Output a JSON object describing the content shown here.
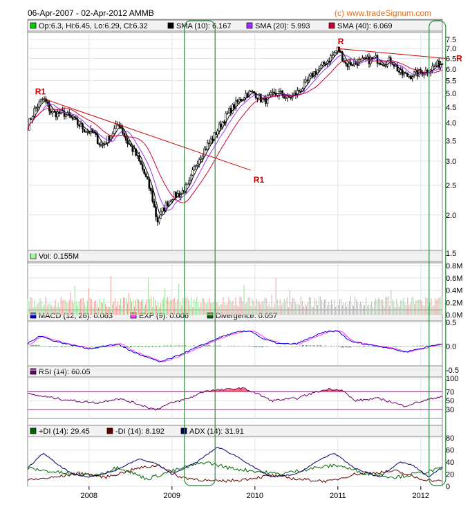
{
  "header": {
    "title": "06-Apr-2007 - 02-Apr-2012 AMMB",
    "source": "(c) www.tradeSignum.com"
  },
  "chart_data": [
    {
      "type": "candlestick",
      "name": "price",
      "scale": "log",
      "ylim": [
        1.5,
        7.5
      ],
      "yticks": [
        "7.5",
        "7.0",
        "6.5",
        "6.0",
        "5.5",
        "5.0",
        "4.5",
        "4.0",
        "3.5",
        "3.0",
        "2.5",
        "2.0",
        "1.5"
      ],
      "legend": [
        {
          "text": "Op:6.3, Hi:6.45, Lo:6.29, Cl:6.32",
          "color": "#00cc00"
        },
        {
          "text": "SMA (10): 6.167",
          "color": "#000000"
        },
        {
          "text": "SMA (20): 5.993",
          "color": "#9933ff"
        },
        {
          "text": "SMA (40): 6.069",
          "color": "#cc0033"
        }
      ],
      "anchors": [
        {
          "t": 2007.26,
          "v": 3.9
        },
        {
          "t": 2007.34,
          "v": 4.4
        },
        {
          "t": 2007.45,
          "v": 4.8
        },
        {
          "t": 2007.55,
          "v": 4.3
        },
        {
          "t": 2007.7,
          "v": 4.3
        },
        {
          "t": 2007.85,
          "v": 4.0
        },
        {
          "t": 2007.95,
          "v": 3.8
        },
        {
          "t": 2008.05,
          "v": 3.7
        },
        {
          "t": 2008.15,
          "v": 3.35
        },
        {
          "t": 2008.25,
          "v": 3.6
        },
        {
          "t": 2008.36,
          "v": 4.0
        },
        {
          "t": 2008.45,
          "v": 3.5
        },
        {
          "t": 2008.55,
          "v": 3.2
        },
        {
          "t": 2008.65,
          "v": 2.8
        },
        {
          "t": 2008.75,
          "v": 2.35
        },
        {
          "t": 2008.82,
          "v": 1.9
        },
        {
          "t": 2008.9,
          "v": 2.1
        },
        {
          "t": 2009.0,
          "v": 2.3
        },
        {
          "t": 2009.1,
          "v": 2.35
        },
        {
          "t": 2009.2,
          "v": 2.5
        },
        {
          "t": 2009.3,
          "v": 3.0
        },
        {
          "t": 2009.4,
          "v": 3.3
        },
        {
          "t": 2009.5,
          "v": 3.6
        },
        {
          "t": 2009.6,
          "v": 4.0
        },
        {
          "t": 2009.7,
          "v": 4.4
        },
        {
          "t": 2009.8,
          "v": 4.7
        },
        {
          "t": 2009.9,
          "v": 5.0
        },
        {
          "t": 2010.0,
          "v": 5.0
        },
        {
          "t": 2010.1,
          "v": 4.7
        },
        {
          "t": 2010.2,
          "v": 4.9
        },
        {
          "t": 2010.3,
          "v": 5.0
        },
        {
          "t": 2010.4,
          "v": 4.8
        },
        {
          "t": 2010.5,
          "v": 5.0
        },
        {
          "t": 2010.6,
          "v": 5.3
        },
        {
          "t": 2010.7,
          "v": 5.8
        },
        {
          "t": 2010.8,
          "v": 6.1
        },
        {
          "t": 2010.9,
          "v": 6.5
        },
        {
          "t": 2011.0,
          "v": 7.0
        },
        {
          "t": 2011.05,
          "v": 6.6
        },
        {
          "t": 2011.1,
          "v": 6.2
        },
        {
          "t": 2011.2,
          "v": 6.3
        },
        {
          "t": 2011.35,
          "v": 6.4
        },
        {
          "t": 2011.45,
          "v": 6.5
        },
        {
          "t": 2011.55,
          "v": 6.3
        },
        {
          "t": 2011.65,
          "v": 6.4
        },
        {
          "t": 2011.75,
          "v": 5.8
        },
        {
          "t": 2011.85,
          "v": 5.7
        },
        {
          "t": 2011.95,
          "v": 5.8
        },
        {
          "t": 2012.05,
          "v": 5.9
        },
        {
          "t": 2012.15,
          "v": 6.1
        },
        {
          "t": 2012.25,
          "v": 6.3
        }
      ],
      "trendlines": [
        {
          "label": "R1",
          "t1": 2007.45,
          "v1": 4.8,
          "t2": 2009.95,
          "v2": 2.8,
          "color": "#cc0000"
        },
        {
          "label": "R",
          "t1": 2011.0,
          "v1": 7.0,
          "t2": 2012.3,
          "v2": 6.5,
          "color": "#cc0000"
        }
      ],
      "label_text": [
        "R1",
        "R1",
        "R",
        "R"
      ]
    },
    {
      "type": "bar",
      "name": "volume",
      "legend": [
        {
          "text": "Vol: 0.155M",
          "color": "#99ff99"
        }
      ],
      "ylim": [
        0,
        0.8
      ],
      "yticks": [
        "0.8M",
        "0.6M",
        "0.4M",
        "0.2M",
        "0.0M"
      ]
    },
    {
      "type": "line",
      "name": "macd",
      "legend": [
        {
          "text": "MACD (12, 26): 0.063",
          "color": "#0000cc"
        },
        {
          "text": "EXP (9): 0.006",
          "color": "#ff33ff"
        },
        {
          "text": "Divergence: 0.057",
          "color": "#006600"
        }
      ],
      "ylim": [
        -0.5,
        0.5
      ],
      "yticks": [
        "0.5",
        "0.0",
        "-0.5"
      ],
      "anchors": [
        {
          "t": 2007.26,
          "v": 0.05
        },
        {
          "t": 2007.4,
          "v": 0.22
        },
        {
          "t": 2007.6,
          "v": 0.1
        },
        {
          "t": 2007.8,
          "v": 0.02
        },
        {
          "t": 2008.0,
          "v": -0.05
        },
        {
          "t": 2008.2,
          "v": 0.0
        },
        {
          "t": 2008.35,
          "v": 0.05
        },
        {
          "t": 2008.5,
          "v": -0.1
        },
        {
          "t": 2008.65,
          "v": -0.2
        },
        {
          "t": 2008.85,
          "v": -0.33
        },
        {
          "t": 2009.0,
          "v": -0.25
        },
        {
          "t": 2009.2,
          "v": -0.1
        },
        {
          "t": 2009.4,
          "v": 0.05
        },
        {
          "t": 2009.6,
          "v": 0.2
        },
        {
          "t": 2009.8,
          "v": 0.3
        },
        {
          "t": 2009.95,
          "v": 0.32
        },
        {
          "t": 2010.1,
          "v": 0.15
        },
        {
          "t": 2010.3,
          "v": 0.05
        },
        {
          "t": 2010.5,
          "v": 0.05
        },
        {
          "t": 2010.7,
          "v": 0.2
        },
        {
          "t": 2010.85,
          "v": 0.3
        },
        {
          "t": 2011.0,
          "v": 0.32
        },
        {
          "t": 2011.15,
          "v": 0.1
        },
        {
          "t": 2011.4,
          "v": 0.02
        },
        {
          "t": 2011.6,
          "v": -0.03
        },
        {
          "t": 2011.8,
          "v": -0.12
        },
        {
          "t": 2012.0,
          "v": -0.05
        },
        {
          "t": 2012.25,
          "v": 0.06
        }
      ]
    },
    {
      "type": "line",
      "name": "rsi",
      "legend": [
        {
          "text": "RSI (14): 60.05",
          "color": "#660066"
        }
      ],
      "ylim": [
        10,
        100
      ],
      "yticks": [
        "100",
        "70",
        "50",
        "30"
      ],
      "levels": [
        70,
        30
      ],
      "anchors": [
        {
          "t": 2007.26,
          "v": 65
        },
        {
          "t": 2007.5,
          "v": 58
        },
        {
          "t": 2007.8,
          "v": 50
        },
        {
          "t": 2008.1,
          "v": 45
        },
        {
          "t": 2008.35,
          "v": 55
        },
        {
          "t": 2008.6,
          "v": 42
        },
        {
          "t": 2008.8,
          "v": 30
        },
        {
          "t": 2009.0,
          "v": 45
        },
        {
          "t": 2009.2,
          "v": 55
        },
        {
          "t": 2009.4,
          "v": 72
        },
        {
          "t": 2009.6,
          "v": 74
        },
        {
          "t": 2009.85,
          "v": 78
        },
        {
          "t": 2010.0,
          "v": 68
        },
        {
          "t": 2010.2,
          "v": 50
        },
        {
          "t": 2010.5,
          "v": 55
        },
        {
          "t": 2010.75,
          "v": 70
        },
        {
          "t": 2010.9,
          "v": 76
        },
        {
          "t": 2011.05,
          "v": 74
        },
        {
          "t": 2011.2,
          "v": 50
        },
        {
          "t": 2011.5,
          "v": 55
        },
        {
          "t": 2011.8,
          "v": 38
        },
        {
          "t": 2012.0,
          "v": 48
        },
        {
          "t": 2012.25,
          "v": 60
        }
      ]
    },
    {
      "type": "line",
      "name": "dmi",
      "legend": [
        {
          "text": "+DI (14): 29.45",
          "color": "#006600"
        },
        {
          "text": "-DI (14): 8.192",
          "color": "#660000"
        },
        {
          "text": "ADX (14): 31.91",
          "color": "#000066"
        }
      ],
      "ylim": [
        0,
        80
      ],
      "yticks": [
        "80",
        "60",
        "40",
        "20",
        "0"
      ],
      "adx": [
        {
          "t": 2007.26,
          "v": 30
        },
        {
          "t": 2007.45,
          "v": 55
        },
        {
          "t": 2007.6,
          "v": 38
        },
        {
          "t": 2007.8,
          "v": 20
        },
        {
          "t": 2008.0,
          "v": 15
        },
        {
          "t": 2008.3,
          "v": 25
        },
        {
          "t": 2008.6,
          "v": 45
        },
        {
          "t": 2008.8,
          "v": 38
        },
        {
          "t": 2009.0,
          "v": 20
        },
        {
          "t": 2009.3,
          "v": 40
        },
        {
          "t": 2009.55,
          "v": 65
        },
        {
          "t": 2009.8,
          "v": 48
        },
        {
          "t": 2010.0,
          "v": 30
        },
        {
          "t": 2010.2,
          "v": 15
        },
        {
          "t": 2010.5,
          "v": 20
        },
        {
          "t": 2010.8,
          "v": 45
        },
        {
          "t": 2010.95,
          "v": 55
        },
        {
          "t": 2011.2,
          "v": 30
        },
        {
          "t": 2011.5,
          "v": 15
        },
        {
          "t": 2011.75,
          "v": 40
        },
        {
          "t": 2011.9,
          "v": 35
        },
        {
          "t": 2012.1,
          "v": 15
        },
        {
          "t": 2012.25,
          "v": 32
        }
      ],
      "plus_di": [
        {
          "t": 2007.26,
          "v": 30
        },
        {
          "t": 2007.5,
          "v": 25
        },
        {
          "t": 2007.8,
          "v": 20
        },
        {
          "t": 2008.1,
          "v": 18
        },
        {
          "t": 2008.35,
          "v": 32
        },
        {
          "t": 2008.7,
          "v": 12
        },
        {
          "t": 2009.0,
          "v": 25
        },
        {
          "t": 2009.4,
          "v": 40
        },
        {
          "t": 2009.7,
          "v": 30
        },
        {
          "t": 2010.0,
          "v": 25
        },
        {
          "t": 2010.3,
          "v": 20
        },
        {
          "t": 2010.7,
          "v": 30
        },
        {
          "t": 2011.0,
          "v": 35
        },
        {
          "t": 2011.3,
          "v": 22
        },
        {
          "t": 2011.7,
          "v": 15
        },
        {
          "t": 2012.0,
          "v": 22
        },
        {
          "t": 2012.25,
          "v": 29
        }
      ],
      "minus_di": [
        {
          "t": 2007.26,
          "v": 10
        },
        {
          "t": 2007.6,
          "v": 15
        },
        {
          "t": 2007.9,
          "v": 22
        },
        {
          "t": 2008.2,
          "v": 15
        },
        {
          "t": 2008.6,
          "v": 30
        },
        {
          "t": 2008.85,
          "v": 35
        },
        {
          "t": 2009.1,
          "v": 15
        },
        {
          "t": 2009.5,
          "v": 8
        },
        {
          "t": 2009.8,
          "v": 10
        },
        {
          "t": 2010.2,
          "v": 18
        },
        {
          "t": 2010.5,
          "v": 12
        },
        {
          "t": 2010.9,
          "v": 8
        },
        {
          "t": 2011.2,
          "v": 20
        },
        {
          "t": 2011.7,
          "v": 25
        },
        {
          "t": 2012.0,
          "v": 12
        },
        {
          "t": 2012.25,
          "v": 8
        }
      ]
    }
  ],
  "x_axis": {
    "labels": [
      "2008",
      "2009",
      "2010",
      "2011",
      "2012"
    ],
    "values": [
      2008,
      2009,
      2010,
      2011,
      2012
    ],
    "range": [
      2007.26,
      2012.26
    ]
  },
  "highlights": [
    {
      "from": 2009.15,
      "to": 2009.52
    },
    {
      "from": 2012.1,
      "to": 2012.3
    }
  ]
}
